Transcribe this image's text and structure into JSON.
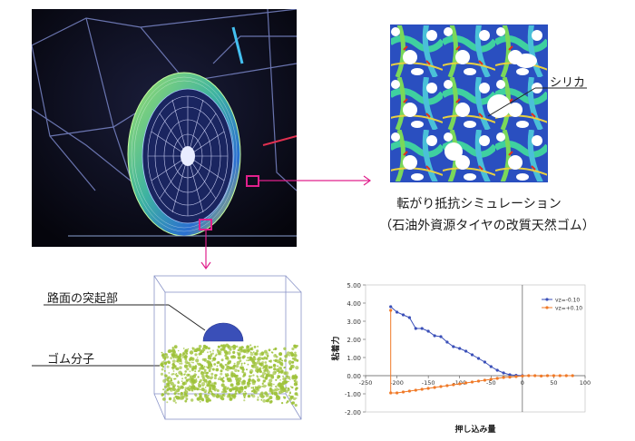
{
  "labels": {
    "silica": "シリカ",
    "caption_line1": "転がり抵抗シミュレーション",
    "caption_line2": "（石油外資源タイヤの改質天然ゴム）",
    "road_bump": "路面の突起部",
    "rubber_molecule": "ゴム分子"
  },
  "colors": {
    "magenta_marker": "#e0208c",
    "tire_green": "#6fd14a",
    "silica_blue": "#1e3fb4",
    "rubber_green": "#9ec23a",
    "bump_blue": "#3a4fb8"
  },
  "chart_data": {
    "type": "line",
    "xlabel": "押し込み量",
    "ylabel": "粘着力",
    "xlim": [
      -250,
      100
    ],
    "ylim": [
      -2.0,
      5.0
    ],
    "xticks": [
      "-250",
      "-200",
      "-150",
      "-100",
      "-50",
      "0",
      "50",
      "100"
    ],
    "yticks": [
      "5.00",
      "4.00",
      "3.00",
      "2.00",
      "1.00",
      "0.00",
      "-1.00",
      "-2.00"
    ],
    "legend_position": "top-right",
    "series": [
      {
        "name": "vz=-0.10",
        "color": "#3a4fb8",
        "x": [
          -210,
          -200,
          -190,
          -180,
          -170,
          -160,
          -150,
          -140,
          -130,
          -120,
          -110,
          -100,
          -90,
          -80,
          -70,
          -60,
          -50,
          -40,
          -30,
          -20,
          -10,
          0
        ],
        "y": [
          3.8,
          3.5,
          3.35,
          3.2,
          2.6,
          2.6,
          2.45,
          2.2,
          2.15,
          1.85,
          1.6,
          1.5,
          1.35,
          1.15,
          0.95,
          0.75,
          0.5,
          0.3,
          0.15,
          0.05,
          0.02,
          0.0
        ]
      },
      {
        "name": "vz=+0.10",
        "color": "#f07a28",
        "x": [
          -210,
          -210,
          -200,
          -190,
          -180,
          -170,
          -160,
          -150,
          -140,
          -130,
          -120,
          -110,
          -100,
          -90,
          -80,
          -70,
          -60,
          -50,
          -40,
          -30,
          -20,
          -10,
          0,
          10,
          20,
          30,
          40,
          50,
          60,
          70,
          80
        ],
        "y": [
          3.6,
          -0.95,
          -0.95,
          -0.9,
          -0.85,
          -0.8,
          -0.75,
          -0.7,
          -0.65,
          -0.6,
          -0.55,
          -0.5,
          -0.45,
          -0.4,
          -0.35,
          -0.3,
          -0.25,
          -0.2,
          -0.15,
          -0.1,
          -0.08,
          -0.05,
          -0.02,
          0.0,
          0.0,
          -0.02,
          0.0,
          0.0,
          0.0,
          0.0,
          0.0
        ]
      }
    ]
  }
}
